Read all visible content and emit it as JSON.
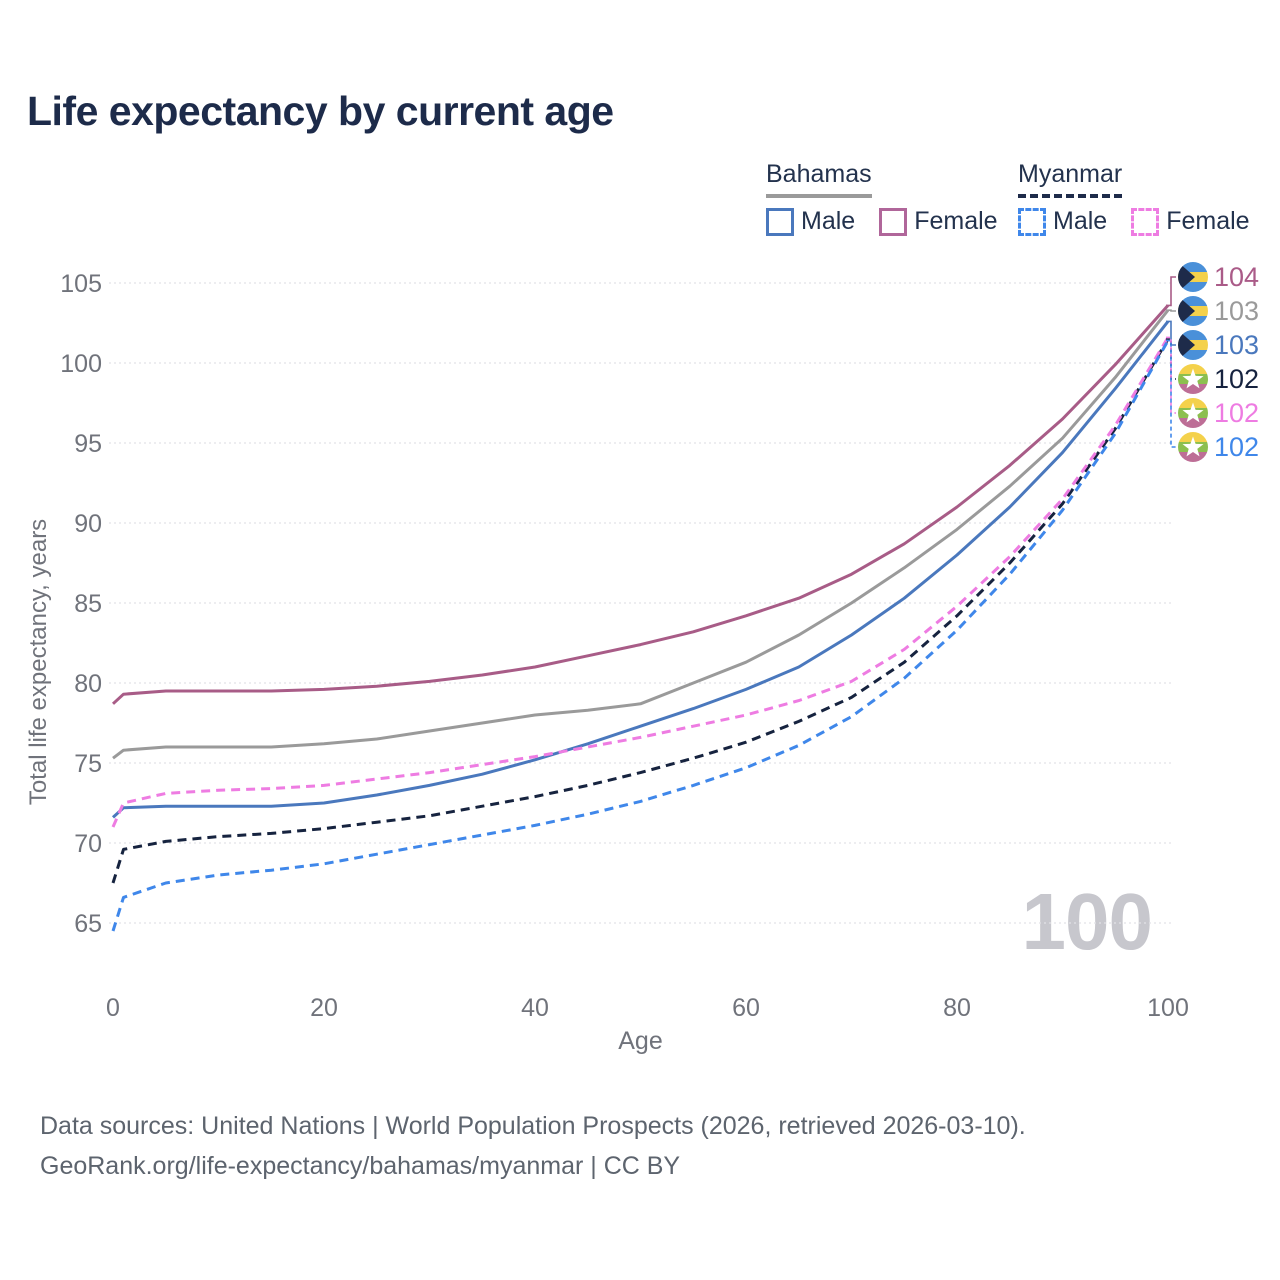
{
  "header": {
    "title": "Life expectancy by current age"
  },
  "legend": {
    "groups": [
      {
        "label": "Bahamas",
        "line_style": "solid",
        "items": [
          {
            "label": "Male",
            "color": "#4a78bd",
            "style": "solid"
          },
          {
            "label": "Female",
            "color": "#b0669a",
            "style": "solid"
          }
        ]
      },
      {
        "label": "Myanmar",
        "line_style": "dashed",
        "items": [
          {
            "label": "Male",
            "color": "#3f87ea",
            "style": "dashed"
          },
          {
            "label": "Female",
            "color": "#ee7ce2",
            "style": "dashed"
          }
        ]
      }
    ]
  },
  "chart_data": {
    "type": "line",
    "title": "Life expectancy by current age",
    "xlabel": "Age",
    "ylabel": "Total life expectancy, years",
    "x_ticks": [
      0,
      20,
      40,
      60,
      80,
      100
    ],
    "y_ticks": [
      65,
      70,
      75,
      80,
      85,
      90,
      95,
      100,
      105
    ],
    "xlim": [
      0,
      100
    ],
    "ylim": [
      64,
      106
    ],
    "grid": true,
    "legend_position": "top-right",
    "watermark": "100",
    "ages": [
      0,
      1,
      5,
      10,
      15,
      20,
      25,
      30,
      35,
      40,
      45,
      50,
      55,
      60,
      65,
      70,
      75,
      80,
      85,
      90,
      95,
      100
    ],
    "series": [
      {
        "name": "Bahamas Female",
        "country": "Bahamas",
        "sex": "Female",
        "style": "solid",
        "color": "#a85c87",
        "values": [
          78.7,
          79.3,
          79.5,
          79.5,
          79.5,
          79.6,
          79.8,
          80.1,
          80.5,
          81.0,
          81.7,
          82.4,
          83.2,
          84.2,
          85.3,
          86.8,
          88.7,
          91.0,
          93.6,
          96.5,
          99.9,
          103.6
        ]
      },
      {
        "name": "Bahamas",
        "country": "Bahamas",
        "sex": "Both",
        "style": "solid",
        "color": "#9a9a9a",
        "values": [
          75.3,
          75.8,
          76.0,
          76.0,
          76.0,
          76.2,
          76.5,
          77.0,
          77.5,
          78.0,
          78.3,
          78.7,
          80.0,
          81.3,
          83.0,
          85.0,
          87.2,
          89.6,
          92.3,
          95.3,
          99.1,
          103.3
        ]
      },
      {
        "name": "Bahamas Male",
        "country": "Bahamas",
        "sex": "Male",
        "style": "solid",
        "color": "#4a78bd",
        "values": [
          71.6,
          72.2,
          72.3,
          72.3,
          72.3,
          72.5,
          73.0,
          73.6,
          74.3,
          75.2,
          76.2,
          77.3,
          78.4,
          79.6,
          81.0,
          83.0,
          85.3,
          88.0,
          91.0,
          94.4,
          98.4,
          102.6
        ]
      },
      {
        "name": "Myanmar",
        "country": "Myanmar",
        "sex": "Both",
        "style": "dashed",
        "color": "#16233f",
        "values": [
          67.5,
          69.6,
          70.1,
          70.4,
          70.6,
          70.9,
          71.3,
          71.7,
          72.3,
          72.9,
          73.6,
          74.4,
          75.3,
          76.3,
          77.6,
          79.1,
          81.3,
          84.2,
          87.5,
          91.2,
          95.9,
          101.5
        ]
      },
      {
        "name": "Myanmar Female",
        "country": "Myanmar",
        "sex": "Female",
        "style": "dashed",
        "color": "#ee7ce2",
        "values": [
          71.0,
          72.5,
          73.1,
          73.3,
          73.4,
          73.6,
          74.0,
          74.4,
          74.9,
          75.4,
          76.0,
          76.6,
          77.3,
          78.0,
          78.9,
          80.1,
          82.1,
          84.8,
          87.9,
          91.5,
          96.1,
          101.6
        ]
      },
      {
        "name": "Myanmar Male",
        "country": "Myanmar",
        "sex": "Male",
        "style": "dashed",
        "color": "#3f87ea",
        "values": [
          64.5,
          66.6,
          67.5,
          68.0,
          68.3,
          68.7,
          69.3,
          69.9,
          70.5,
          71.1,
          71.8,
          72.6,
          73.6,
          74.7,
          76.1,
          77.9,
          80.3,
          83.3,
          86.8,
          90.8,
          95.6,
          101.4
        ]
      }
    ],
    "end_labels": [
      {
        "value": "104",
        "color": "#aa5b88",
        "flag": "bahamas"
      },
      {
        "value": "103",
        "color": "#9a9a9a",
        "flag": "bahamas"
      },
      {
        "value": "103",
        "color": "#4a78bd",
        "flag": "bahamas"
      },
      {
        "value": "102",
        "color": "#16233f",
        "flag": "myanmar"
      },
      {
        "value": "102",
        "color": "#ee7ce2",
        "flag": "myanmar"
      },
      {
        "value": "102",
        "color": "#3f87ea",
        "flag": "myanmar"
      }
    ],
    "flag_colors": {
      "bahamas": {
        "band": "#4a90d9",
        "middle": "#f4d14b",
        "chevron": "#1e2b4a"
      },
      "myanmar": {
        "top": "#f4d14b",
        "middle": "#8cbf4f",
        "bottom": "#bd6e96",
        "star": "#ffffff"
      }
    }
  },
  "footer": {
    "line1": "Data sources: United Nations | World Population Prospects (2026, retrieved 2026-03-10).",
    "line2": "GeoRank.org/life-expectancy/bahamas/myanmar | CC BY"
  }
}
